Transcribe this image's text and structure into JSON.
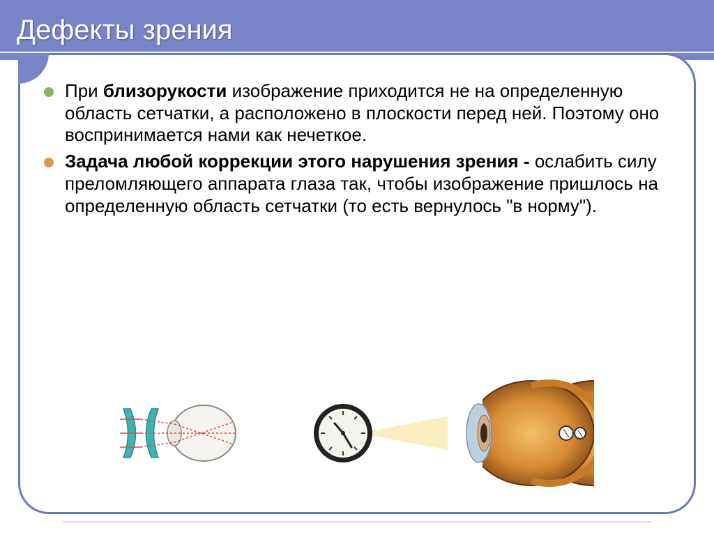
{
  "slide": {
    "title": "Дефекты зрения",
    "bullets": [
      {
        "color": "#8fb757",
        "runs": [
          {
            "t": "При ",
            "b": false
          },
          {
            "t": "близорукости ",
            "b": true
          },
          {
            "t": "изображение приходится не на определенную область сетчатки, а расположено в плоскости перед ней. Поэтому оно воспринимается нами как нечеткое.",
            "b": false
          }
        ]
      },
      {
        "color": "#d89a4a",
        "runs": [
          {
            "t": "Задача любой коррекции этого нарушения зрения - ",
            "b": true
          },
          {
            "t": "ослабить силу преломляющего аппарата глаза так, чтобы изображение пришлось на определенную область сетчатки (то есть вернулось \"в норму\").",
            "b": false
          }
        ]
      }
    ],
    "font_size_title": 40,
    "font_size_body": 26,
    "header_bg": "#7884c8",
    "frame_border": "#6a77c0",
    "diagrams": {
      "lens_eye": {
        "lens_color": "#3eb3b0",
        "ray_color": "#d54a4a",
        "eye_outline": "#888888",
        "eye_fill": "#f5f3ef"
      },
      "clock_eye": {
        "clock_rim": "#222222",
        "clock_face": "#f6f4ee",
        "clock_tick": "#333333",
        "light_cone": "#f9eab0",
        "eye_outer": "#c77a28",
        "eye_inner_dark": "#4a2a10",
        "eye_inner_glow": "#e8a64a",
        "cornea": "#bcd0e0"
      }
    }
  }
}
